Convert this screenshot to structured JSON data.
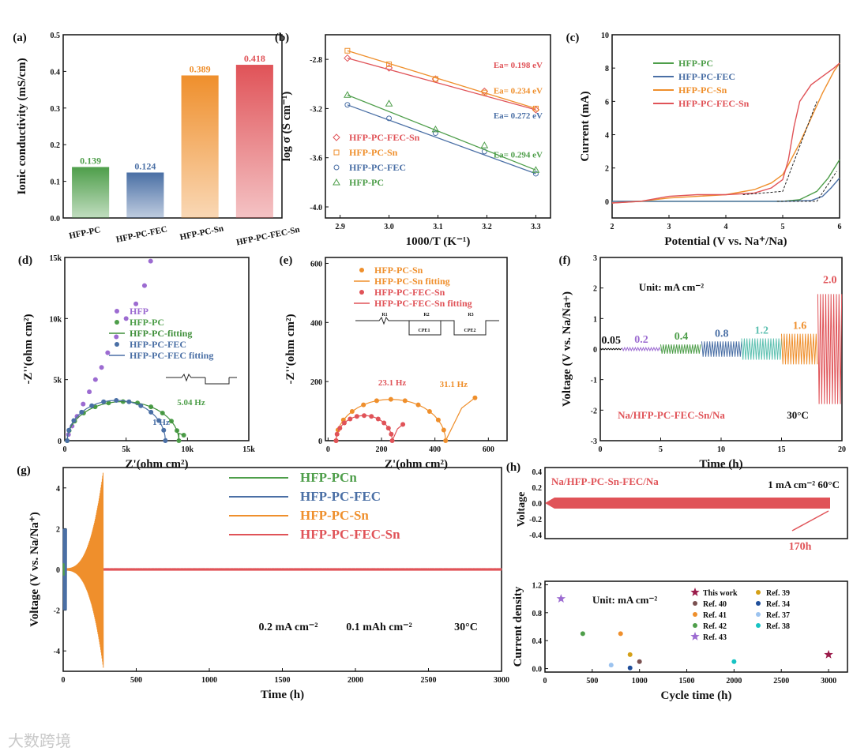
{
  "watermark": "大数跨境",
  "chart_data": [
    {
      "id": "a",
      "panel": "(a)",
      "type": "bar",
      "ylabel": "Ionic conductivity (mS/cm)",
      "ylim": [
        0,
        0.5
      ],
      "yticks": [
        0.0,
        0.1,
        0.2,
        0.3,
        0.4,
        0.5
      ],
      "categories": [
        "HFP-PC",
        "HFP-PC-FEC",
        "HFP-PC-Sn",
        "HFP-PC-FEC-Sn"
      ],
      "values": [
        0.139,
        0.124,
        0.389,
        0.418
      ],
      "labels": [
        "0.139",
        "0.124",
        "0.389",
        "0.418"
      ],
      "colors": [
        "#4e9e4a",
        "#4a6fa5",
        "#ef8f2c",
        "#e05358"
      ]
    },
    {
      "id": "b",
      "panel": "(b)",
      "type": "scatter",
      "xlabel": "1000/T (K⁻¹)",
      "ylabel": "log σ (S cm⁻¹)",
      "xlim": [
        2.87,
        3.33
      ],
      "ylim": [
        -4.09,
        -2.6
      ],
      "xticks": [
        2.9,
        3.0,
        3.1,
        3.2,
        3.3
      ],
      "yticks": [
        -2.8,
        -3.2,
        -3.6,
        -4.0
      ],
      "series": [
        {
          "name": "HFP-PC-FEC-Sn",
          "marker": "diamond",
          "color": "#e05358",
          "x": [
            2.915,
            3.0,
            3.095,
            3.195,
            3.3
          ],
          "y": [
            -2.79,
            -2.87,
            -2.96,
            -3.06,
            -3.21
          ],
          "ea": "Ea= 0.198 eV"
        },
        {
          "name": "HFP-PC-Sn",
          "marker": "square",
          "color": "#ef8f2c",
          "x": [
            2.915,
            3.0,
            3.095,
            3.195,
            3.3
          ],
          "y": [
            -2.73,
            -2.84,
            -2.96,
            -3.07,
            -3.2
          ],
          "ea": "Ea= 0.234 eV"
        },
        {
          "name": "HFP-PC-FEC",
          "marker": "circle",
          "color": "#4a6fa5",
          "x": [
            2.915,
            3.0,
            3.095,
            3.195,
            3.3
          ],
          "y": [
            -3.17,
            -3.28,
            -3.4,
            -3.55,
            -3.73
          ],
          "ea": "Ea= 0.272 eV"
        },
        {
          "name": "HFP-PC",
          "marker": "triangle",
          "color": "#4e9e4a",
          "x": [
            2.915,
            3.0,
            3.095,
            3.195,
            3.3
          ],
          "y": [
            -3.09,
            -3.16,
            -3.37,
            -3.5,
            -3.7
          ],
          "ea": "Ea= 0.294 eV"
        }
      ]
    },
    {
      "id": "c",
      "panel": "(c)",
      "type": "line",
      "xlabel": "Potential (V vs. Na⁺/Na)",
      "ylabel": "Current (mA)",
      "xlim": [
        2,
        6
      ],
      "ylim": [
        -1,
        10
      ],
      "xticks": [
        2,
        3,
        4,
        5,
        6
      ],
      "yticks": [
        0,
        2,
        4,
        6,
        8,
        10
      ],
      "series": [
        {
          "name": "HFP-PC",
          "color": "#4e9e4a",
          "x": [
            2,
            3,
            4,
            5,
            5.3,
            5.6,
            5.8,
            6
          ],
          "y": [
            0,
            0,
            0,
            0,
            0.1,
            0.6,
            1.4,
            2.5
          ]
        },
        {
          "name": "HFP-PC-FEC",
          "color": "#4a6fa5",
          "x": [
            2,
            3,
            4,
            5,
            5.5,
            5.7,
            5.85,
            6
          ],
          "y": [
            0,
            0,
            0,
            0,
            0.05,
            0.3,
            0.8,
            1.4
          ]
        },
        {
          "name": "HFP-PC-Sn",
          "color": "#ef8f2c",
          "x": [
            2,
            2.5,
            3,
            3.5,
            4,
            4.5,
            4.8,
            5,
            5.1,
            5.3,
            5.5,
            5.7,
            5.9,
            6
          ],
          "y": [
            -0.1,
            0,
            0.2,
            0.3,
            0.4,
            0.7,
            1.1,
            1.6,
            2.2,
            3.5,
            5,
            6.5,
            7.8,
            8.3
          ]
        },
        {
          "name": "HFP-PC-FEC-Sn",
          "color": "#e05358",
          "x": [
            2,
            2.5,
            3,
            3.5,
            4,
            4.5,
            4.8,
            5,
            5.1,
            5.2,
            5.3,
            5.5,
            5.7,
            5.9,
            6
          ],
          "y": [
            -0.1,
            0,
            0.3,
            0.4,
            0.4,
            0.5,
            0.8,
            1.3,
            2.5,
            4.5,
            6,
            7,
            7.5,
            8,
            8.3
          ]
        }
      ]
    },
    {
      "id": "d",
      "panel": "(d)",
      "type": "scatter",
      "xlabel": "Z'(ohm cm²)",
      "ylabel": "-Z''(ohm cm²)",
      "xlim": [
        0,
        15000
      ],
      "ylim": [
        0,
        15000
      ],
      "xticks": [
        0,
        5000,
        10000,
        15000
      ],
      "xticklabels": [
        "0",
        "5k",
        "10k",
        "15k"
      ],
      "yticks": [
        0,
        5000,
        10000,
        15000
      ],
      "yticklabels": [
        "0",
        "5k",
        "10k",
        "15k"
      ],
      "series": [
        {
          "name": "HFP",
          "color": "#9c6bd1",
          "x": [
            300,
            600,
            1000,
            1500,
            2000,
            2500,
            3000,
            3500,
            4200,
            5000,
            5800,
            6500,
            7000
          ],
          "y": [
            500,
            1200,
            2000,
            3000,
            4000,
            5000,
            6000,
            7200,
            8500,
            10000,
            11200,
            12700,
            14700
          ]
        },
        {
          "name": "HFP-PC",
          "color": "#4e9e4a",
          "semicircle": [
            200,
            9300
          ],
          "height": 3200,
          "tail": [
            [
              9300,
              600
            ],
            [
              9700,
              450
            ]
          ]
        },
        {
          "name": "HFP-PC-fitting",
          "color": "#3f8f3a",
          "line": true
        },
        {
          "name": "HFP-PC-FEC",
          "color": "#4a6fa5",
          "semicircle": [
            200,
            8200
          ],
          "height": 3300,
          "tail": [
            [
              8300,
              200
            ]
          ]
        },
        {
          "name": "HFP-PC-FEC fitting",
          "color": "#4a6fa5",
          "line": true
        }
      ],
      "annotations": [
        "5.04 Hz",
        "1 Hz"
      ]
    },
    {
      "id": "e",
      "panel": "(e)",
      "type": "scatter",
      "xlabel": "Z'(ohm cm²)",
      "ylabel": "-Z''(ohm cm²)",
      "xlim": [
        -10,
        670
      ],
      "ylim": [
        0,
        620
      ],
      "xticks": [
        0,
        200,
        400,
        600
      ],
      "yticks": [
        0,
        200,
        400,
        600
      ],
      "series": [
        {
          "name": "HFP-PC-Sn",
          "color": "#ef8f2c",
          "semicircle": [
            30,
            440
          ],
          "height": 140,
          "tail": [
            [
              500,
              110
            ],
            [
              550,
              145
            ]
          ]
        },
        {
          "name": "HFP-PC-Sn fitting",
          "color": "#ef8f2c",
          "line": true
        },
        {
          "name": "HFP-PC-FEC-Sn",
          "color": "#e05358",
          "semicircle": [
            30,
            240
          ],
          "height": 85,
          "tail": [
            [
              260,
              40
            ],
            [
              280,
              55
            ]
          ]
        },
        {
          "name": "HFP-PC-FEC-Sn fitting",
          "color": "#e05358",
          "line": true
        }
      ],
      "annotations": [
        "23.1 Hz",
        "31.1 Hz"
      ],
      "circuit_labels": [
        "R1",
        "R2",
        "CPE1",
        "R3",
        "CPE2"
      ]
    },
    {
      "id": "f",
      "panel": "(f)",
      "type": "line",
      "xlabel": "Time (h)",
      "ylabel": "Voltage (V vs. Na/Na+)",
      "xlim": [
        0,
        20
      ],
      "ylim": [
        -3,
        3
      ],
      "xticks": [
        0,
        5,
        10,
        15,
        20
      ],
      "yticks": [
        -3,
        -2,
        -1,
        0,
        1,
        2,
        3
      ],
      "unit_label": "Unit: mA cm⁻²",
      "cell_label": "Na/HFP-PC-FEC-Sn/Na",
      "temp_label": "30°C",
      "segments": [
        {
          "current": "0.05",
          "t": [
            0,
            1.8
          ],
          "amp": 0.02,
          "color": "#111111"
        },
        {
          "current": "0.2",
          "t": [
            1.8,
            5
          ],
          "amp": 0.05,
          "color": "#9c6bd1"
        },
        {
          "current": "0.4",
          "t": [
            5,
            8.4
          ],
          "amp": 0.15,
          "color": "#4e9e4a"
        },
        {
          "current": "0.8",
          "t": [
            8.4,
            11.7
          ],
          "amp": 0.25,
          "color": "#4a6fa5"
        },
        {
          "current": "1.2",
          "t": [
            11.7,
            15
          ],
          "amp": 0.35,
          "color": "#5cc0b0"
        },
        {
          "current": "1.6",
          "t": [
            15,
            18
          ],
          "amp": 0.5,
          "color": "#ef8f2c"
        },
        {
          "current": "2.0",
          "t": [
            18,
            20
          ],
          "amp": 1.8,
          "color": "#e05358"
        }
      ]
    },
    {
      "id": "g",
      "panel": "(g)",
      "type": "line",
      "xlabel": "Time (h)",
      "ylabel": "Voltage (V vs. Na/Na⁺)",
      "xlim": [
        0,
        3000
      ],
      "ylim": [
        -5,
        5
      ],
      "xticks": [
        0,
        500,
        1000,
        1500,
        2000,
        2500,
        3000
      ],
      "yticks": [
        -4,
        -2,
        0,
        2,
        4
      ],
      "conditions": [
        "0.2 mA cm⁻²",
        "0.1 mAh cm⁻²",
        "30°C"
      ],
      "series": [
        {
          "name": "HFP-PCn",
          "color": "#4e9e4a",
          "t": [
            0,
            8
          ],
          "amp": 0.3
        },
        {
          "name": "HFP-PC-FEC",
          "color": "#4a6fa5",
          "t": [
            0,
            25
          ],
          "amp": 2.0
        },
        {
          "name": "HFP-PC-Sn",
          "color": "#ef8f2c",
          "t": [
            0,
            275
          ],
          "amp": 4.8,
          "growing": true
        },
        {
          "name": "HFP-PC-FEC-Sn",
          "color": "#e05358",
          "t": [
            0,
            3000
          ],
          "amp": 0.06
        }
      ]
    },
    {
      "id": "h1",
      "panel": "(h)",
      "type": "line",
      "ylabel": "Voltage",
      "ylim": [
        -0.45,
        0.45
      ],
      "yticks": [
        -0.4,
        -0.2,
        0.0,
        0.2,
        0.4
      ],
      "cell_label": "Na/HFP-PC-Sn-FEC/Na",
      "conditions": "1 mA cm⁻²  60°C",
      "annotation": "170h",
      "amp": 0.07,
      "color": "#e05358"
    },
    {
      "id": "h2",
      "type": "scatter",
      "xlabel": "Cycle time (h)",
      "ylabel": "Current density",
      "xlim": [
        0,
        3200
      ],
      "ylim": [
        -0.05,
        1.25
      ],
      "xticks": [
        0,
        500,
        1000,
        1500,
        2000,
        2500,
        3000
      ],
      "yticks": [
        0.0,
        0.4,
        0.8,
        1.2
      ],
      "unit_label": "Unit: mA cm⁻²",
      "points": [
        {
          "name": "This work",
          "marker": "star",
          "color": "#9b1b4a",
          "x": 3000,
          "y": 0.2
        },
        {
          "name": "Ref. 40",
          "color": "#7a5050",
          "x": 1000,
          "y": 0.1
        },
        {
          "name": "Ref. 41",
          "color": "#ef8f2c",
          "x": 800,
          "y": 0.5
        },
        {
          "name": "Ref. 42",
          "color": "#4e9e4a",
          "x": 400,
          "y": 0.5
        },
        {
          "name": "Ref. 43",
          "marker": "star",
          "color": "#9c6bd1",
          "x": 170,
          "y": 1.0
        },
        {
          "name": "Ref. 39",
          "color": "#d4a017",
          "x": 900,
          "y": 0.2
        },
        {
          "name": "Ref. 34",
          "color": "#1f4e9a",
          "x": 900,
          "y": 0.01
        },
        {
          "name": "Ref. 37",
          "color": "#9cc3ef",
          "x": 700,
          "y": 0.05
        },
        {
          "name": "Ref. 38",
          "color": "#17c3c3",
          "x": 2000,
          "y": 0.1
        }
      ]
    }
  ]
}
